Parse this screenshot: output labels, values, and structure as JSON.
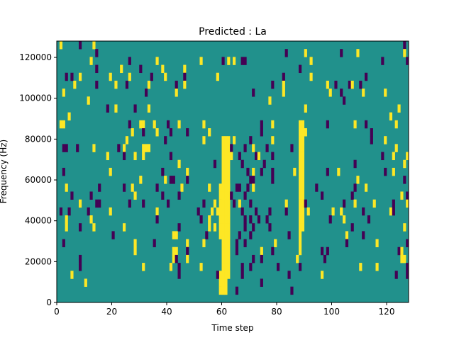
{
  "chart_data": {
    "type": "heatmap",
    "title": "Predicted : La",
    "xlabel": "Time step",
    "ylabel": "Frequency (Hz)",
    "xlim": [
      0,
      128
    ],
    "ylim": [
      0,
      128000
    ],
    "n_cols": 128,
    "n_rows": 33,
    "xticks": [
      "0",
      "20",
      "40",
      "60",
      "80",
      "100",
      "120"
    ],
    "xtick_values": [
      0,
      20,
      40,
      60,
      80,
      100,
      120
    ],
    "yticks": [
      "0",
      "20000",
      "40000",
      "60000",
      "80000",
      "100000",
      "120000"
    ],
    "ytick_values": [
      0,
      20000,
      40000,
      60000,
      80000,
      100000,
      120000
    ],
    "grid": false,
    "colors": {
      "0": "#440154",
      "1": "#21918c",
      "2": "#fde725"
    },
    "background_value": 1,
    "runs": [
      [
        60,
        61,
        1,
        18,
        2
      ],
      [
        62,
        62,
        3,
        15,
        2
      ],
      [
        59,
        62,
        8,
        14,
        2
      ],
      [
        60,
        62,
        16,
        20,
        2
      ],
      [
        88,
        89,
        9,
        22,
        2
      ],
      [
        88,
        88,
        6,
        10,
        2
      ],
      [
        59,
        61,
        1,
        3,
        2
      ]
    ],
    "cells": [
      [
        1,
        32,
        2
      ],
      [
        8,
        32,
        0
      ],
      [
        13,
        32,
        2
      ],
      [
        126,
        32,
        0
      ],
      [
        14,
        31,
        0
      ],
      [
        83,
        31,
        0
      ],
      [
        90,
        31,
        2
      ],
      [
        103,
        31,
        0
      ],
      [
        109,
        31,
        2
      ],
      [
        126,
        31,
        2
      ],
      [
        12,
        30,
        2
      ],
      [
        26,
        30,
        0
      ],
      [
        36,
        30,
        2
      ],
      [
        52,
        30,
        2
      ],
      [
        60,
        30,
        0
      ],
      [
        62,
        30,
        2
      ],
      [
        64,
        30,
        2
      ],
      [
        67,
        30,
        0
      ],
      [
        68,
        30,
        0
      ],
      [
        92,
        30,
        2
      ],
      [
        118,
        30,
        0
      ],
      [
        127,
        30,
        0
      ],
      [
        14,
        29,
        0
      ],
      [
        23,
        29,
        2
      ],
      [
        30,
        29,
        0
      ],
      [
        38,
        29,
        2
      ],
      [
        46,
        29,
        2
      ],
      [
        88,
        29,
        0
      ],
      [
        3,
        28,
        0
      ],
      [
        5,
        28,
        0
      ],
      [
        8,
        28,
        2
      ],
      [
        19,
        28,
        2
      ],
      [
        26,
        28,
        2
      ],
      [
        34,
        28,
        0
      ],
      [
        39,
        28,
        2
      ],
      [
        46,
        28,
        0
      ],
      [
        58,
        28,
        2
      ],
      [
        82,
        28,
        0
      ],
      [
        92,
        28,
        2
      ],
      [
        112,
        28,
        0
      ],
      [
        6,
        27,
        2
      ],
      [
        14,
        27,
        0
      ],
      [
        21,
        27,
        2
      ],
      [
        25,
        27,
        0
      ],
      [
        33,
        27,
        2
      ],
      [
        43,
        27,
        0
      ],
      [
        46,
        27,
        2
      ],
      [
        78,
        27,
        0
      ],
      [
        82,
        27,
        2
      ],
      [
        98,
        27,
        2
      ],
      [
        101,
        27,
        0
      ],
      [
        106,
        27,
        0
      ],
      [
        107,
        27,
        2
      ],
      [
        110,
        27,
        0
      ],
      [
        2,
        26,
        2
      ],
      [
        32,
        26,
        0
      ],
      [
        43,
        26,
        2
      ],
      [
        71,
        26,
        0
      ],
      [
        82,
        26,
        2
      ],
      [
        99,
        26,
        2
      ],
      [
        103,
        26,
        0
      ],
      [
        111,
        26,
        2
      ],
      [
        119,
        26,
        2
      ],
      [
        11,
        25,
        2
      ],
      [
        77,
        25,
        2
      ],
      [
        104,
        25,
        0
      ],
      [
        18,
        24,
        0
      ],
      [
        21,
        24,
        2
      ],
      [
        28,
        24,
        0
      ],
      [
        33,
        24,
        2
      ],
      [
        90,
        24,
        2
      ],
      [
        124,
        24,
        2
      ],
      [
        4,
        23,
        2
      ],
      [
        121,
        23,
        2
      ],
      [
        1,
        22,
        2
      ],
      [
        2,
        22,
        2
      ],
      [
        26,
        22,
        0
      ],
      [
        30,
        22,
        2
      ],
      [
        31,
        22,
        2
      ],
      [
        35,
        22,
        2
      ],
      [
        40,
        22,
        0
      ],
      [
        44,
        22,
        2
      ],
      [
        53,
        22,
        2
      ],
      [
        74,
        22,
        0
      ],
      [
        78,
        22,
        2
      ],
      [
        98,
        22,
        0
      ],
      [
        108,
        22,
        2
      ],
      [
        112,
        22,
        0
      ],
      [
        123,
        22,
        2
      ],
      [
        27,
        21,
        2
      ],
      [
        31,
        21,
        0
      ],
      [
        36,
        21,
        2
      ],
      [
        41,
        21,
        0
      ],
      [
        47,
        21,
        0
      ],
      [
        55,
        21,
        2
      ],
      [
        74,
        21,
        0
      ],
      [
        90,
        21,
        2
      ],
      [
        114,
        21,
        0
      ],
      [
        25,
        20,
        2
      ],
      [
        39,
        20,
        0
      ],
      [
        53,
        20,
        2
      ],
      [
        64,
        20,
        2
      ],
      [
        70,
        20,
        0
      ],
      [
        78,
        20,
        2
      ],
      [
        114,
        20,
        0
      ],
      [
        119,
        20,
        2
      ],
      [
        2,
        19,
        0
      ],
      [
        3,
        19,
        0
      ],
      [
        7,
        19,
        0
      ],
      [
        13,
        19,
        2
      ],
      [
        22,
        19,
        0
      ],
      [
        24,
        19,
        2
      ],
      [
        31,
        19,
        2
      ],
      [
        32,
        19,
        2
      ],
      [
        33,
        19,
        2
      ],
      [
        63,
        19,
        0
      ],
      [
        68,
        19,
        0
      ],
      [
        71,
        19,
        2
      ],
      [
        76,
        19,
        0
      ],
      [
        85,
        19,
        0
      ],
      [
        123,
        19,
        2
      ],
      [
        18,
        18,
        2
      ],
      [
        24,
        18,
        0
      ],
      [
        28,
        18,
        2
      ],
      [
        31,
        18,
        2
      ],
      [
        41,
        18,
        0
      ],
      [
        63,
        18,
        2
      ],
      [
        66,
        18,
        0
      ],
      [
        72,
        18,
        0
      ],
      [
        73,
        18,
        2
      ],
      [
        78,
        18,
        0
      ],
      [
        118,
        18,
        0
      ],
      [
        122,
        18,
        2
      ],
      [
        127,
        18,
        2
      ],
      [
        44,
        17,
        2
      ],
      [
        57,
        17,
        0
      ],
      [
        67,
        17,
        0
      ],
      [
        75,
        17,
        0
      ],
      [
        108,
        17,
        0
      ],
      [
        126,
        17,
        2
      ],
      [
        2,
        16,
        0
      ],
      [
        19,
        16,
        2
      ],
      [
        38,
        16,
        0
      ],
      [
        47,
        16,
        2
      ],
      [
        69,
        16,
        0
      ],
      [
        71,
        16,
        2
      ],
      [
        74,
        16,
        0
      ],
      [
        78,
        16,
        0
      ],
      [
        86,
        16,
        2
      ],
      [
        98,
        16,
        0
      ],
      [
        102,
        16,
        2
      ],
      [
        119,
        16,
        0
      ],
      [
        122,
        16,
        2
      ],
      [
        30,
        15,
        2
      ],
      [
        39,
        15,
        2
      ],
      [
        41,
        15,
        0
      ],
      [
        42,
        15,
        0
      ],
      [
        47,
        15,
        0
      ],
      [
        70,
        15,
        0
      ],
      [
        71,
        15,
        0
      ],
      [
        78,
        15,
        0
      ],
      [
        109,
        15,
        2
      ],
      [
        126,
        15,
        0
      ],
      [
        3,
        14,
        2
      ],
      [
        15,
        14,
        0
      ],
      [
        24,
        14,
        0
      ],
      [
        27,
        14,
        2
      ],
      [
        36,
        14,
        0
      ],
      [
        45,
        14,
        2
      ],
      [
        55,
        14,
        2
      ],
      [
        65,
        14,
        0
      ],
      [
        66,
        14,
        0
      ],
      [
        69,
        14,
        0
      ],
      [
        71,
        14,
        2
      ],
      [
        94,
        14,
        0
      ],
      [
        108,
        14,
        0
      ],
      [
        112,
        14,
        2
      ],
      [
        5,
        13,
        0
      ],
      [
        12,
        13,
        0
      ],
      [
        28,
        13,
        2
      ],
      [
        38,
        13,
        0
      ],
      [
        44,
        13,
        0
      ],
      [
        63,
        13,
        0
      ],
      [
        68,
        13,
        0
      ],
      [
        96,
        13,
        0
      ],
      [
        107,
        13,
        0
      ],
      [
        125,
        13,
        2
      ],
      [
        127,
        13,
        0
      ],
      [
        8,
        12,
        2
      ],
      [
        14,
        12,
        0
      ],
      [
        15,
        12,
        0
      ],
      [
        26,
        12,
        0
      ],
      [
        31,
        12,
        0
      ],
      [
        40,
        12,
        0
      ],
      [
        53,
        12,
        0
      ],
      [
        57,
        12,
        2
      ],
      [
        64,
        12,
        0
      ],
      [
        66,
        12,
        2
      ],
      [
        70,
        12,
        0
      ],
      [
        83,
        12,
        2
      ],
      [
        90,
        12,
        0
      ],
      [
        104,
        12,
        0
      ],
      [
        108,
        12,
        2
      ],
      [
        115,
        12,
        2
      ],
      [
        122,
        12,
        0
      ],
      [
        127,
        12,
        2
      ],
      [
        1,
        11,
        0
      ],
      [
        4,
        11,
        0
      ],
      [
        11,
        11,
        0
      ],
      [
        19,
        11,
        2
      ],
      [
        36,
        11,
        2
      ],
      [
        51,
        11,
        0
      ],
      [
        56,
        11,
        2
      ],
      [
        58,
        11,
        2
      ],
      [
        67,
        11,
        0
      ],
      [
        72,
        11,
        0
      ],
      [
        77,
        11,
        0
      ],
      [
        83,
        11,
        0
      ],
      [
        91,
        11,
        2
      ],
      [
        100,
        11,
        2
      ],
      [
        103,
        11,
        2
      ],
      [
        111,
        11,
        0
      ],
      [
        121,
        11,
        2
      ],
      [
        122,
        11,
        0
      ],
      [
        3,
        10,
        2
      ],
      [
        12,
        10,
        2
      ],
      [
        36,
        10,
        0
      ],
      [
        52,
        10,
        0
      ],
      [
        55,
        10,
        2
      ],
      [
        68,
        10,
        0
      ],
      [
        70,
        10,
        0
      ],
      [
        73,
        10,
        0
      ],
      [
        76,
        10,
        0
      ],
      [
        99,
        10,
        0
      ],
      [
        104,
        10,
        2
      ],
      [
        113,
        10,
        0
      ],
      [
        3,
        9,
        2
      ],
      [
        8,
        9,
        0
      ],
      [
        13,
        9,
        2
      ],
      [
        24,
        9,
        2
      ],
      [
        44,
        9,
        0
      ],
      [
        55,
        9,
        2
      ],
      [
        57,
        9,
        2
      ],
      [
        68,
        9,
        0
      ],
      [
        71,
        9,
        0
      ],
      [
        77,
        9,
        0
      ],
      [
        107,
        9,
        0
      ],
      [
        126,
        9,
        2
      ],
      [
        20,
        8,
        0
      ],
      [
        42,
        8,
        2
      ],
      [
        43,
        8,
        2
      ],
      [
        54,
        8,
        0
      ],
      [
        66,
        8,
        0
      ],
      [
        70,
        8,
        0
      ],
      [
        84,
        8,
        0
      ],
      [
        105,
        8,
        2
      ],
      [
        111,
        8,
        0
      ],
      [
        2,
        7,
        0
      ],
      [
        28,
        7,
        2
      ],
      [
        35,
        7,
        0
      ],
      [
        47,
        7,
        2
      ],
      [
        53,
        7,
        2
      ],
      [
        65,
        7,
        0
      ],
      [
        68,
        7,
        0
      ],
      [
        79,
        7,
        2
      ],
      [
        105,
        7,
        0
      ],
      [
        116,
        7,
        2
      ],
      [
        127,
        7,
        0
      ],
      [
        28,
        6,
        2
      ],
      [
        42,
        6,
        2
      ],
      [
        43,
        6,
        2
      ],
      [
        47,
        6,
        0
      ],
      [
        65,
        6,
        0
      ],
      [
        74,
        6,
        2
      ],
      [
        78,
        6,
        0
      ],
      [
        96,
        6,
        0
      ],
      [
        98,
        6,
        0
      ],
      [
        124,
        6,
        0
      ],
      [
        125,
        6,
        2
      ],
      [
        8,
        5,
        0
      ],
      [
        42,
        5,
        2
      ],
      [
        43,
        5,
        0
      ],
      [
        47,
        5,
        2
      ],
      [
        71,
        5,
        0
      ],
      [
        74,
        5,
        0
      ],
      [
        87,
        5,
        2
      ],
      [
        97,
        5,
        0
      ],
      [
        125,
        5,
        2
      ],
      [
        126,
        5,
        2
      ],
      [
        8,
        4,
        0
      ],
      [
        31,
        4,
        2
      ],
      [
        41,
        4,
        2
      ],
      [
        44,
        4,
        0
      ],
      [
        52,
        4,
        2
      ],
      [
        67,
        4,
        0
      ],
      [
        70,
        4,
        0
      ],
      [
        80,
        4,
        0
      ],
      [
        88,
        4,
        0
      ],
      [
        110,
        4,
        2
      ],
      [
        116,
        4,
        2
      ],
      [
        127,
        4,
        0
      ],
      [
        5,
        3,
        2
      ],
      [
        44,
        3,
        0
      ],
      [
        58,
        3,
        0
      ],
      [
        67,
        3,
        0
      ],
      [
        84,
        3,
        0
      ],
      [
        96,
        3,
        2
      ],
      [
        123,
        3,
        0
      ],
      [
        127,
        3,
        0
      ],
      [
        10,
        2,
        2
      ],
      [
        74,
        2,
        0
      ],
      [
        65,
        1,
        0
      ],
      [
        85,
        1,
        0
      ]
    ]
  }
}
